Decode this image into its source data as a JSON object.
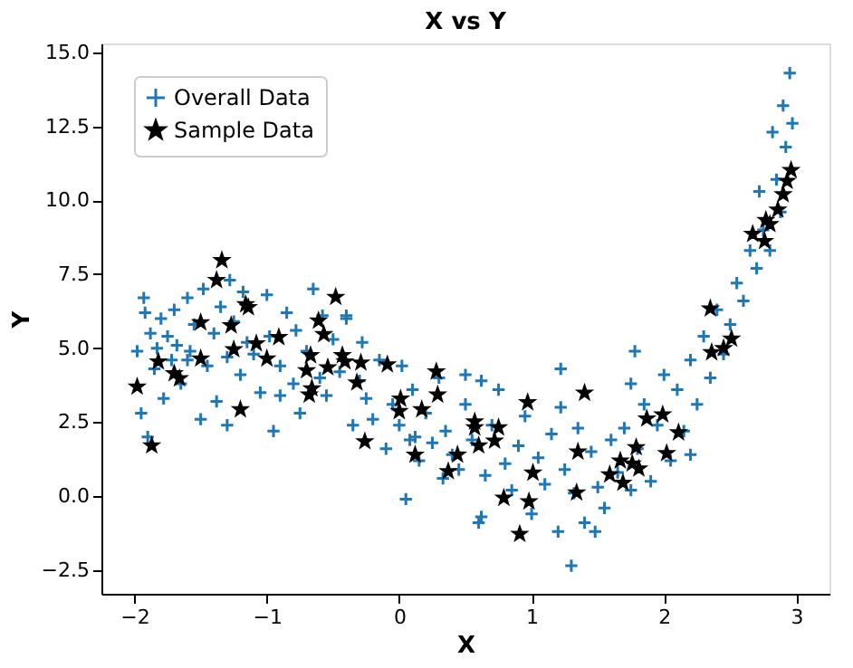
{
  "chart_data": {
    "type": "scatter",
    "title": "X vs Y",
    "xlabel": "X",
    "ylabel": "Y",
    "xlim": [
      -2.25,
      3.25
    ],
    "ylim": [
      -3.3,
      15.3
    ],
    "xticks": [
      {
        "value": -2,
        "label": "−2"
      },
      {
        "value": -1,
        "label": "−1"
      },
      0,
      1,
      2,
      3
    ],
    "yticks": [
      {
        "value": -2.5,
        "label": "−2.5"
      },
      {
        "value": 0,
        "label": "0.0"
      },
      {
        "value": 2.5,
        "label": "2.5"
      },
      {
        "value": 5,
        "label": "5.0"
      },
      {
        "value": 7.5,
        "label": "7.5"
      },
      {
        "value": 10,
        "label": "10.0"
      },
      {
        "value": 12.5,
        "label": "12.5"
      },
      {
        "value": 15,
        "label": "15.0"
      }
    ],
    "grid": false,
    "legend": "top left",
    "series": [
      {
        "name": "Overall Data",
        "color": "#1f77b4",
        "marker": "cross",
        "x": [
          -1.98,
          -1.95,
          -1.93,
          -1.9,
          -1.88,
          -1.85,
          -1.83,
          -1.8,
          -1.78,
          -1.75,
          -1.72,
          -1.7,
          -1.68,
          -1.65,
          -1.6,
          -1.58,
          -1.55,
          -1.5,
          -1.48,
          -1.45,
          -1.4,
          -1.38,
          -1.35,
          -1.3,
          -1.28,
          -1.25,
          -1.2,
          -1.18,
          -1.15,
          -1.1,
          -1.05,
          -1.0,
          -0.98,
          -0.95,
          -0.9,
          -0.85,
          -0.8,
          -0.78,
          -0.75,
          -0.7,
          -0.65,
          -0.6,
          -0.58,
          -0.55,
          -0.5,
          -0.45,
          -0.4,
          -0.35,
          -0.3,
          -0.28,
          -0.25,
          -0.2,
          -0.15,
          -0.1,
          -0.05,
          0.0,
          0.02,
          0.05,
          0.08,
          0.1,
          0.15,
          0.2,
          0.25,
          0.3,
          0.33,
          0.35,
          0.4,
          0.45,
          0.5,
          0.55,
          0.6,
          0.65,
          0.7,
          0.75,
          0.8,
          0.85,
          0.9,
          0.95,
          1.0,
          1.05,
          1.1,
          1.15,
          1.2,
          1.22,
          1.25,
          1.3,
          1.32,
          1.35,
          1.4,
          1.45,
          1.5,
          1.55,
          1.6,
          1.65,
          1.7,
          1.75,
          1.78,
          1.8,
          1.85,
          1.9,
          1.95,
          2.0,
          2.05,
          2.1,
          2.15,
          2.2,
          2.25,
          2.3,
          2.35,
          2.4,
          2.45,
          2.5,
          2.55,
          2.6,
          2.65,
          2.7,
          2.72,
          2.75,
          2.8,
          2.82,
          2.85,
          2.88,
          2.9,
          2.92,
          2.95,
          2.97,
          -1.92,
          -1.6,
          -0.9,
          -0.4,
          0.12,
          0.62,
          0.62,
          1.22,
          1.48,
          1.75,
          2.2,
          -1.3,
          0.5
        ],
        "values": [
          4.9,
          2.8,
          6.7,
          2.0,
          5.5,
          4.3,
          5.0,
          6.0,
          3.3,
          5.4,
          4.6,
          6.3,
          5.1,
          3.8,
          6.7,
          4.9,
          5.8,
          2.6,
          7.0,
          4.4,
          5.5,
          3.2,
          6.4,
          4.7,
          7.3,
          5.9,
          4.1,
          6.9,
          5.2,
          4.8,
          3.5,
          6.8,
          5.4,
          2.2,
          4.4,
          6.2,
          3.8,
          5.6,
          2.8,
          4.9,
          7.0,
          4.0,
          6.1,
          3.4,
          5.3,
          4.2,
          6.0,
          2.4,
          3.9,
          5.2,
          3.3,
          2.6,
          4.6,
          1.6,
          3.1,
          2.4,
          4.4,
          -0.1,
          1.9,
          3.6,
          1.2,
          2.8,
          1.8,
          4.0,
          0.6,
          2.2,
          1.4,
          0.9,
          3.1,
          1.9,
          -0.9,
          0.7,
          2.4,
          3.6,
          1.1,
          0.2,
          1.7,
          2.7,
          -0.6,
          1.3,
          0.4,
          2.1,
          -1.2,
          4.3,
          0.9,
          -2.35,
          0.1,
          2.3,
          -0.9,
          1.5,
          0.3,
          -0.4,
          1.9,
          0.8,
          2.3,
          0.2,
          4.9,
          1.6,
          3.1,
          0.5,
          2.4,
          4.1,
          1.2,
          3.6,
          2.2,
          4.6,
          3.1,
          5.4,
          4.0,
          6.3,
          4.8,
          5.8,
          7.2,
          6.6,
          8.3,
          7.7,
          10.3,
          9.0,
          8.3,
          12.3,
          10.7,
          9.6,
          13.2,
          11.8,
          14.3,
          12.6,
          6.2,
          4.6,
          3.4,
          6.1,
          2.0,
          -0.7,
          3.9,
          3.0,
          -1.2,
          3.8,
          1.4,
          2.4,
          4.1
        ]
      },
      {
        "name": "Sample Data",
        "color": "#000000",
        "marker": "star",
        "x": [
          -1.98,
          -1.87,
          -1.82,
          -1.7,
          -1.66,
          -1.5,
          -1.5,
          -1.2,
          -1.25,
          -1.27,
          -1.14,
          -1.08,
          -1.0,
          -0.91,
          -0.61,
          -0.57,
          -0.67,
          -0.7,
          -0.66,
          -0.68,
          -0.54,
          -0.43,
          -0.41,
          -0.29,
          -0.32,
          -0.26,
          -0.09,
          0.28,
          0.29,
          0.01,
          0.0,
          0.17,
          0.12,
          0.44,
          0.37,
          -1.34,
          -1.38,
          -1.16,
          -0.48,
          0.57,
          0.57,
          0.6,
          0.75,
          0.72,
          0.97,
          0.79,
          0.98,
          0.91,
          1.01,
          1.35,
          1.34,
          1.4,
          1.59,
          1.67,
          1.69,
          1.76,
          1.81,
          1.79,
          1.87,
          1.99,
          2.11,
          2.02,
          2.35,
          2.36,
          2.45,
          2.51,
          2.67,
          2.76,
          2.77,
          2.8,
          2.86,
          2.9,
          2.93,
          2.96
        ],
        "values": [
          3.7,
          1.71,
          4.55,
          4.15,
          3.98,
          5.87,
          4.65,
          2.93,
          4.96,
          5.77,
          6.38,
          5.16,
          4.65,
          5.37,
          5.93,
          5.47,
          4.76,
          4.25,
          3.64,
          3.43,
          4.35,
          4.76,
          4.55,
          4.51,
          3.84,
          1.85,
          4.45,
          4.21,
          3.43,
          3.29,
          2.87,
          2.93,
          1.4,
          1.4,
          0.84,
          7.97,
          7.3,
          6.48,
          6.73,
          2.52,
          2.32,
          1.71,
          2.32,
          1.87,
          3.17,
          -0.06,
          -0.18,
          -1.28,
          0.79,
          1.5,
          0.12,
          3.49,
          0.73,
          1.2,
          0.45,
          1.1,
          0.93,
          1.65,
          2.62,
          2.76,
          2.15,
          1.45,
          6.34,
          4.86,
          5.0,
          5.32,
          8.86,
          8.62,
          9.33,
          9.19,
          9.68,
          10.2,
          10.65,
          11.02
        ]
      }
    ]
  }
}
